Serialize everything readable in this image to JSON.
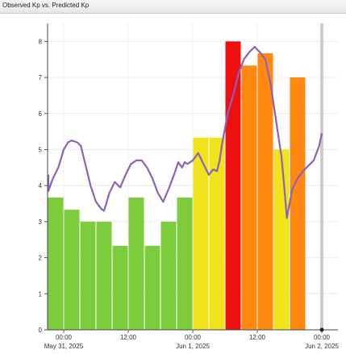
{
  "header": {
    "title": "Observed Kp vs. Predicted Kp"
  },
  "colors": {
    "green": "#7dcc3c",
    "yellow": "#f0e31c",
    "orange": "#ff8810",
    "red": "#ee1010",
    "line": "#8b62b8",
    "now_line": "#c8c8c8"
  },
  "chart_data": {
    "type": "bar",
    "title": "Observed Kp vs. Predicted Kp",
    "ylim": [
      0,
      8.5
    ],
    "yticks": [
      0,
      1,
      2,
      3,
      4,
      5,
      6,
      7,
      8
    ],
    "xlim_hours": [
      -3,
      51
    ],
    "xticks": [
      {
        "hour": 0,
        "time": "00:00",
        "date": "May 31, 2025"
      },
      {
        "hour": 12,
        "time": "12:00",
        "date": ""
      },
      {
        "hour": 24,
        "time": "00:00",
        "date": "Jun 1, 2025"
      },
      {
        "hour": 36,
        "time": "12:00",
        "date": ""
      },
      {
        "hour": 48,
        "time": "00:00",
        "date": "Jun 2, 2025"
      }
    ],
    "bar_width_hours": 3,
    "observed_kp": [
      {
        "start_hour": -3,
        "value": 3.67,
        "color": "green"
      },
      {
        "start_hour": 0,
        "value": 3.33,
        "color": "green"
      },
      {
        "start_hour": 3,
        "value": 3.0,
        "color": "green"
      },
      {
        "start_hour": 6,
        "value": 3.0,
        "color": "green"
      },
      {
        "start_hour": 9,
        "value": 2.33,
        "color": "green"
      },
      {
        "start_hour": 12,
        "value": 3.67,
        "color": "green"
      },
      {
        "start_hour": 15,
        "value": 2.33,
        "color": "green"
      },
      {
        "start_hour": 18,
        "value": 3.0,
        "color": "green"
      },
      {
        "start_hour": 21,
        "value": 3.67,
        "color": "green"
      },
      {
        "start_hour": 24,
        "value": 5.33,
        "color": "yellow"
      },
      {
        "start_hour": 27,
        "value": 5.33,
        "color": "yellow"
      },
      {
        "start_hour": 30,
        "value": 8.0,
        "color": "red"
      },
      {
        "start_hour": 33,
        "value": 7.33,
        "color": "orange"
      },
      {
        "start_hour": 36,
        "value": 7.67,
        "color": "orange"
      },
      {
        "start_hour": 39,
        "value": 5.0,
        "color": "yellow"
      },
      {
        "start_hour": 42,
        "value": 7.0,
        "color": "orange"
      }
    ],
    "predicted_kp": [
      [
        -5.5,
        4.3
      ],
      [
        -5.0,
        4.05
      ],
      [
        -4.5,
        4.15
      ],
      [
        -4.0,
        3.95
      ],
      [
        -3.5,
        4.0
      ],
      [
        -3.0,
        3.85
      ],
      [
        -2.5,
        4.0
      ],
      [
        -2.0,
        4.2
      ],
      [
        -1.0,
        4.5
      ],
      [
        0.0,
        5.0
      ],
      [
        0.8,
        5.2
      ],
      [
        1.5,
        5.25
      ],
      [
        2.5,
        5.2
      ],
      [
        3.2,
        5.1
      ],
      [
        4.0,
        4.6
      ],
      [
        5.0,
        4.0
      ],
      [
        6.0,
        3.55
      ],
      [
        7.0,
        3.35
      ],
      [
        7.5,
        3.3
      ],
      [
        8.5,
        3.8
      ],
      [
        9.5,
        4.1
      ],
      [
        10.5,
        3.95
      ],
      [
        11.5,
        4.3
      ],
      [
        12.5,
        4.6
      ],
      [
        13.5,
        4.7
      ],
      [
        14.5,
        4.7
      ],
      [
        15.5,
        4.5
      ],
      [
        16.5,
        4.2
      ],
      [
        17.5,
        3.8
      ],
      [
        18.5,
        3.55
      ],
      [
        19.5,
        3.9
      ],
      [
        20.5,
        4.3
      ],
      [
        21.3,
        4.65
      ],
      [
        22.0,
        4.5
      ],
      [
        22.5,
        4.65
      ],
      [
        23.0,
        4.6
      ],
      [
        24.0,
        4.7
      ],
      [
        25.0,
        4.9
      ],
      [
        26.0,
        4.6
      ],
      [
        27.0,
        4.3
      ],
      [
        27.8,
        4.45
      ],
      [
        28.5,
        4.4
      ],
      [
        29.0,
        4.7
      ],
      [
        29.5,
        5.2
      ],
      [
        30.5,
        6.0
      ],
      [
        31.5,
        6.5
      ],
      [
        32.5,
        7.1
      ],
      [
        33.5,
        7.5
      ],
      [
        34.5,
        7.7
      ],
      [
        35.5,
        7.85
      ],
      [
        36.5,
        7.7
      ],
      [
        37.5,
        7.5
      ],
      [
        38.5,
        6.8
      ],
      [
        39.5,
        5.8
      ],
      [
        40.5,
        4.8
      ],
      [
        41.0,
        4.0
      ],
      [
        41.5,
        3.1
      ],
      [
        42.0,
        3.5
      ],
      [
        42.5,
        3.9
      ],
      [
        43.5,
        4.2
      ],
      [
        44.5,
        4.4
      ],
      [
        45.5,
        4.55
      ],
      [
        46.5,
        4.7
      ],
      [
        47.5,
        5.1
      ],
      [
        48.0,
        5.45
      ]
    ],
    "current_time_hour": 48
  }
}
